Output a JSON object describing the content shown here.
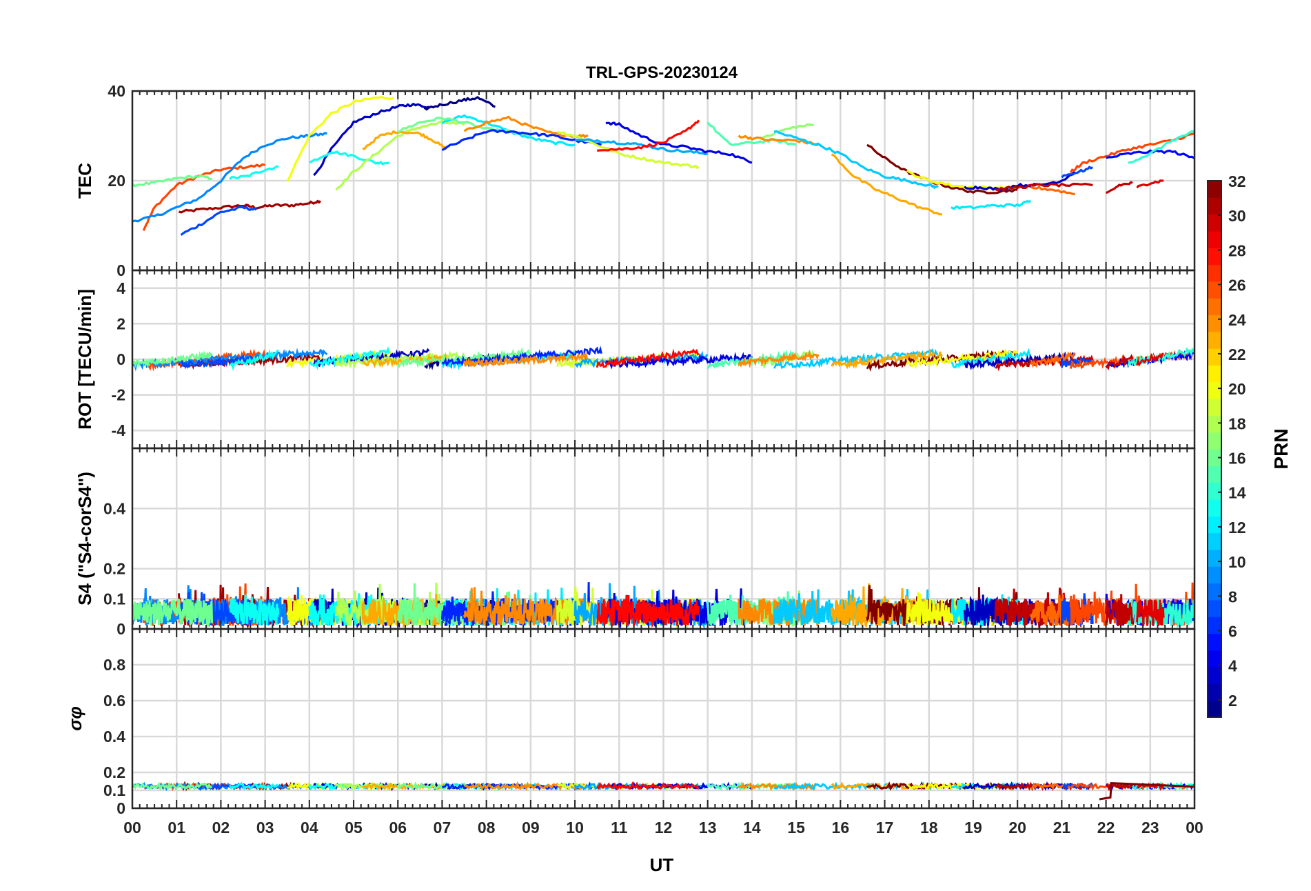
{
  "chart_data": {
    "type": "line",
    "title": "TRL-GPS-20230124",
    "xlabel": "UT",
    "x_ticks": [
      "00",
      "01",
      "02",
      "03",
      "04",
      "05",
      "06",
      "07",
      "08",
      "09",
      "10",
      "11",
      "12",
      "13",
      "14",
      "15",
      "16",
      "17",
      "18",
      "19",
      "20",
      "21",
      "22",
      "23",
      "00"
    ],
    "xlim": [
      0,
      24
    ],
    "grid": true,
    "colorbar": {
      "label": "PRN",
      "colormap": "jet",
      "range": [
        1,
        32
      ],
      "ticks": [
        "2",
        "4",
        "6",
        "8",
        "10",
        "12",
        "14",
        "16",
        "18",
        "20",
        "22",
        "24",
        "26",
        "28",
        "30",
        "32"
      ]
    },
    "panels": [
      {
        "ylabel": "TEC",
        "ylim": [
          0,
          40
        ],
        "y_ticks": [
          "0",
          "20",
          "40"
        ],
        "series": [
          {
            "prn": 31,
            "x": [
              1.05,
              1.5,
              2.0,
              2.5,
              2.8,
              3.2,
              3.6,
              4.0,
              4.25
            ],
            "y": [
              13,
              13.5,
              14,
              14.5,
              14,
              14.5,
              14.5,
              15,
              15.5
            ]
          },
          {
            "prn": 26,
            "x": [
              0.25,
              0.5,
              1.0,
              1.5,
              2.0,
              2.5,
              3.0
            ],
            "y": [
              9,
              14,
              19,
              21,
              22.5,
              23,
              23.5
            ]
          },
          {
            "prn": 9,
            "x": [
              0,
              0.5,
              1.0,
              1.5,
              2.0,
              2.5,
              3.0,
              3.5,
              4.0,
              4.4
            ],
            "y": [
              11,
              12,
              14,
              16,
              20,
              25,
              28,
              29.5,
              30,
              30.5
            ]
          },
          {
            "prn": 7,
            "x": [
              1.1,
              1.5,
              2.0,
              2.5,
              2.8
            ],
            "y": [
              8,
              10,
              13,
              14,
              13.5
            ]
          },
          {
            "prn": 16,
            "x": [
              0,
              0.5,
              1.0,
              1.5,
              1.8
            ],
            "y": [
              19,
              19.5,
              20.5,
              21,
              20.5
            ]
          },
          {
            "prn": 13,
            "x": [
              2.2,
              2.6,
              3.0,
              3.3
            ],
            "y": [
              20.5,
              21,
              22.5,
              23
            ]
          },
          {
            "prn": 20,
            "x": [
              3.5,
              4.0,
              4.5,
              5.0,
              5.5,
              5.9
            ],
            "y": [
              20,
              30,
              35,
              37.5,
              38.5,
              38.5
            ]
          },
          {
            "prn": 3,
            "x": [
              4.1,
              4.5,
              5.0,
              5.5,
              6.0,
              6.3,
              6.7
            ],
            "y": [
              21,
              27,
              33,
              35,
              36.5,
              37,
              36.5
            ]
          },
          {
            "prn": 13,
            "x": [
              4.0,
              4.5,
              5.0,
              5.5,
              5.8
            ],
            "y": [
              24,
              26.5,
              25.5,
              24,
              24
            ]
          },
          {
            "prn": 18,
            "x": [
              4.6,
              5.0,
              5.5,
              6.0,
              6.5,
              7.0,
              7.5
            ],
            "y": [
              18,
              22,
              26,
              30,
              32,
              33,
              32.5
            ]
          },
          {
            "prn": 1,
            "x": [
              6.6,
              7.0,
              7.5,
              7.8,
              8.2
            ],
            "y": [
              36,
              37,
              38,
              38.5,
              36.5
            ]
          },
          {
            "prn": 23,
            "x": [
              5.2,
              5.6,
              6.0,
              6.5,
              6.8,
              7.1
            ],
            "y": [
              27,
              30,
              31,
              30.5,
              29,
              27
            ]
          },
          {
            "prn": 12,
            "x": [
              7.0,
              7.5,
              8.0,
              8.5,
              9.0,
              9.5,
              10.0
            ],
            "y": [
              33,
              34.5,
              33,
              31,
              29.5,
              28.5,
              28
            ]
          },
          {
            "prn": 16,
            "x": [
              6.0,
              6.5,
              7.0,
              7.5,
              8.0,
              8.5,
              9.0
            ],
            "y": [
              31,
              33,
              34,
              33,
              31.5,
              31,
              30
            ]
          },
          {
            "prn": 6,
            "x": [
              7.0,
              7.5,
              8.0,
              8.5,
              9.0,
              9.5,
              10.0,
              10.6
            ],
            "y": [
              27,
              29,
              31,
              31,
              30.5,
              30,
              29,
              28
            ]
          },
          {
            "prn": 24,
            "x": [
              7.5,
              8.0,
              8.5,
              9.0,
              9.5,
              10.0,
              10.3
            ],
            "y": [
              31,
              33,
              34,
              32,
              30.5,
              30,
              30
            ]
          },
          {
            "prn": 19,
            "x": [
              9.6,
              10.0,
              10.5,
              11.0,
              11.5,
              12.0,
              12.5,
              12.8
            ],
            "y": [
              31,
              30,
              28,
              26,
              25,
              24,
              23.5,
              23
            ]
          },
          {
            "prn": 10,
            "x": [
              10.0,
              10.5,
              11.0,
              11.5,
              12.0,
              12.5,
              13.0
            ],
            "y": [
              29,
              29,
              28.5,
              28,
              27,
              26.5,
              26
            ]
          },
          {
            "prn": 4,
            "x": [
              10.7,
              11.0,
              11.5,
              12.0,
              12.5,
              13.0,
              13.5,
              14.0
            ],
            "y": [
              33,
              32.5,
              30,
              28,
              27.5,
              26.5,
              26,
              24
            ]
          },
          {
            "prn": 28,
            "x": [
              10.5,
              11.0,
              11.5,
              12.0,
              12.5,
              12.8
            ],
            "y": [
              27,
              27,
              27.5,
              28.5,
              31,
              33.5
            ]
          },
          {
            "prn": 15,
            "x": [
              13.0,
              13.5,
              14.0,
              14.5,
              15.0
            ],
            "y": [
              33,
              28,
              28.5,
              29,
              28
            ]
          },
          {
            "prn": 17,
            "x": [
              14.2,
              14.6,
              15.0,
              15.4
            ],
            "y": [
              29.5,
              31,
              32,
              32.5
            ]
          },
          {
            "prn": 24,
            "x": [
              13.7,
              14.0,
              14.5,
              15.0,
              15.5
            ],
            "y": [
              30,
              29.5,
              29,
              29,
              28
            ]
          },
          {
            "prn": 11,
            "x": [
              14.5,
              15.0,
              15.5,
              16.0,
              16.5,
              17.0,
              17.5,
              18.0,
              18.2
            ],
            "y": [
              31,
              29.5,
              28,
              26,
              23,
              21,
              20,
              19,
              18.5
            ]
          },
          {
            "prn": 23,
            "x": [
              15.8,
              16.3,
              16.8,
              17.3,
              17.8,
              18.3
            ],
            "y": [
              26,
              21,
              18,
              16,
              14,
              12.5
            ]
          },
          {
            "prn": 32,
            "x": [
              16.6,
              17.0,
              17.5,
              18.0,
              18.5,
              19.0,
              19.5,
              20.0
            ],
            "y": [
              28,
              25,
              22,
              20,
              18.5,
              17.5,
              17.5,
              18
            ]
          },
          {
            "prn": 20,
            "x": [
              17.5,
              18.0,
              18.5,
              19.0,
              19.5,
              20.0
            ],
            "y": [
              22,
              20,
              19,
              18.5,
              18.5,
              18.5
            ]
          },
          {
            "prn": 12,
            "x": [
              18.5,
              19.0,
              19.5,
              20.0,
              20.3
            ],
            "y": [
              14,
              14,
              14.5,
              14.5,
              15.5
            ]
          },
          {
            "prn": 3,
            "x": [
              18.8,
              19.2,
              19.6,
              20.0,
              20.5,
              21.0,
              21.3
            ],
            "y": [
              18.5,
              18.5,
              18,
              19,
              19,
              20,
              22
            ]
          },
          {
            "prn": 30,
            "x": [
              19.5,
              20.0,
              20.5,
              21.0,
              21.7
            ],
            "y": [
              18,
              18.5,
              19,
              19,
              19
            ]
          },
          {
            "prn": 25,
            "x": [
              20.3,
              20.8,
              21.3
            ],
            "y": [
              18.5,
              18,
              17
            ]
          },
          {
            "prn": 7,
            "x": [
              21.0,
              21.4,
              21.7
            ],
            "y": [
              21,
              22,
              23
            ]
          },
          {
            "prn": 26,
            "x": [
              21.2,
              21.5,
              22.0,
              22.5,
              23.0,
              23.5,
              24.0
            ],
            "y": [
              22,
              24,
              25.5,
              27,
              28,
              29,
              30.5
            ]
          },
          {
            "prn": 5,
            "x": [
              22.0,
              22.5,
              23.0,
              23.5,
              24.0
            ],
            "y": [
              25,
              26,
              26.5,
              26.5,
              25
            ]
          },
          {
            "prn": 14,
            "x": [
              22.5,
              23.0,
              23.5,
              24.0
            ],
            "y": [
              24,
              26,
              29,
              31
            ]
          },
          {
            "prn": 30,
            "x": [
              22.0,
              22.3,
              22.6
            ],
            "y": [
              17,
              19,
              19.5
            ]
          },
          {
            "prn": 29,
            "x": [
              22.7,
              23.0,
              23.3
            ],
            "y": [
              18.5,
              19.5,
              20
            ]
          }
        ]
      },
      {
        "ylabel": "ROT [TECU/min]",
        "ylim": [
          -5,
          5
        ],
        "y_ticks": [
          "-4",
          "-2",
          "0",
          "2",
          "4"
        ]
      },
      {
        "ylabel": "S4 (\"S4-corS4\")",
        "ylim": [
          0,
          0.6
        ],
        "y_ticks": [
          "0",
          "0.1",
          "0.2",
          "0.4"
        ]
      },
      {
        "ylabel": "σφ",
        "ylim": [
          0,
          1
        ],
        "y_ticks": [
          "0",
          "0.1",
          "0.2",
          "0.4",
          "0.6",
          "0.8"
        ]
      }
    ]
  }
}
